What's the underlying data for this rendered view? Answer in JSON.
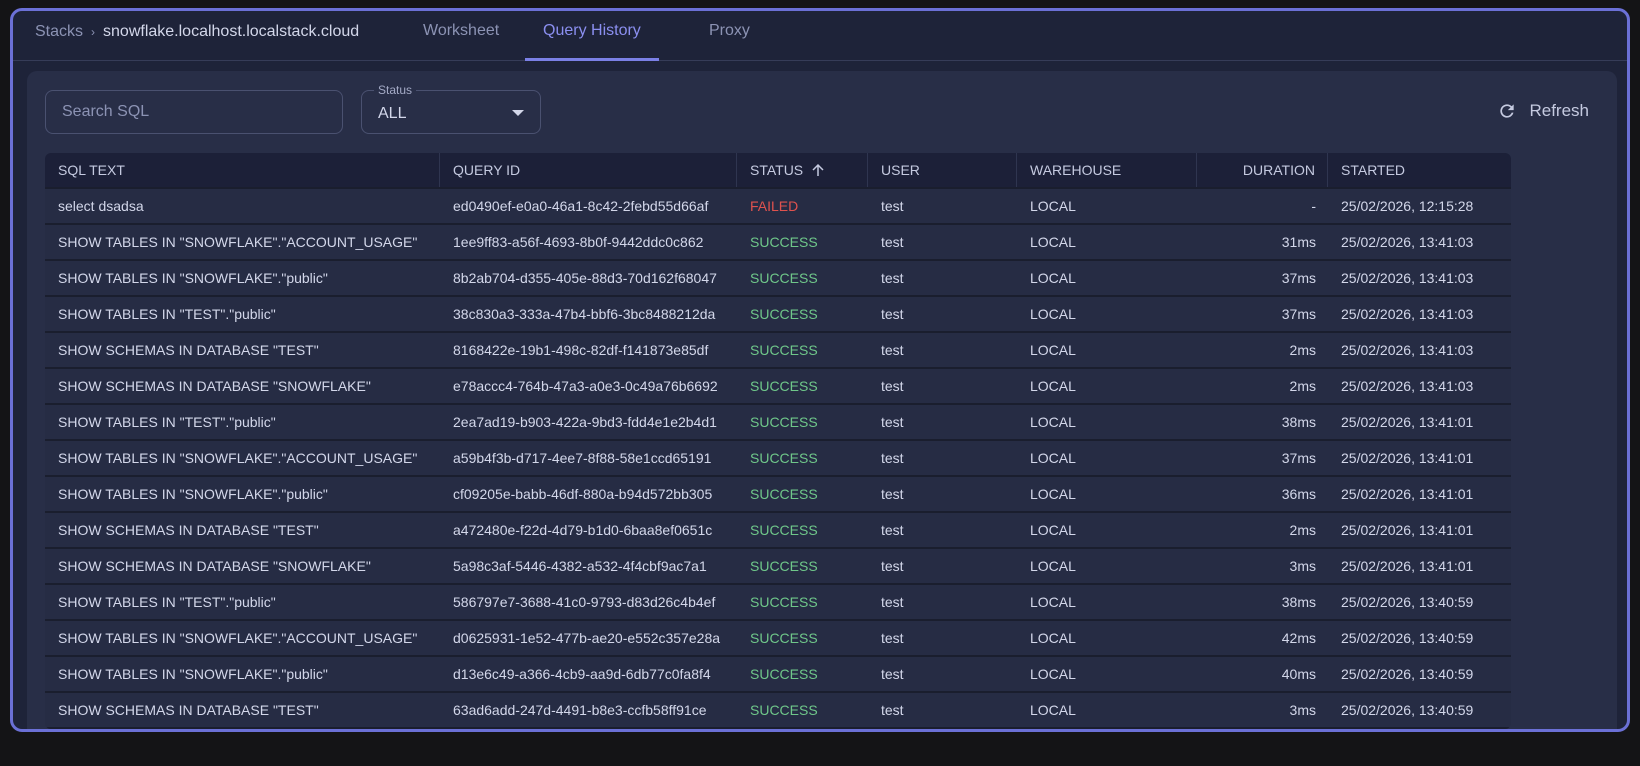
{
  "breadcrumb": {
    "root": "Stacks",
    "separator": "›",
    "host": "snowflake.localhost.localstack.cloud"
  },
  "tabs": [
    {
      "label": "Worksheet"
    },
    {
      "label": "Query History",
      "active": true
    },
    {
      "label": "Proxy"
    }
  ],
  "search": {
    "placeholder": "Search SQL",
    "value": ""
  },
  "status_filter": {
    "label": "Status",
    "value": "ALL"
  },
  "refresh": {
    "label": "Refresh",
    "icon": "refresh-icon"
  },
  "colors": {
    "accent": "#7b80e6",
    "success": "#6fc78a",
    "failed": "#e0524e"
  },
  "table": {
    "columns": [
      "SQL TEXT",
      "QUERY ID",
      "STATUS",
      "USER",
      "WAREHOUSE",
      "DURATION",
      "STARTED"
    ],
    "sort": {
      "column": "STATUS",
      "direction": "asc"
    },
    "rows": [
      [
        "select dsadsa",
        "ed0490ef-e0a0-46a1-8c42-2febd55d66af",
        "FAILED",
        "test",
        "LOCAL",
        "-",
        "25/02/2026, 12:15:28"
      ],
      [
        "SHOW TABLES IN \"SNOWFLAKE\".\"ACCOUNT_USAGE\"",
        "1ee9ff83-a56f-4693-8b0f-9442ddc0c862",
        "SUCCESS",
        "test",
        "LOCAL",
        "31ms",
        "25/02/2026, 13:41:03"
      ],
      [
        "SHOW TABLES IN \"SNOWFLAKE\".\"public\"",
        "8b2ab704-d355-405e-88d3-70d162f68047",
        "SUCCESS",
        "test",
        "LOCAL",
        "37ms",
        "25/02/2026, 13:41:03"
      ],
      [
        "SHOW TABLES IN \"TEST\".\"public\"",
        "38c830a3-333a-47b4-bbf6-3bc8488212da",
        "SUCCESS",
        "test",
        "LOCAL",
        "37ms",
        "25/02/2026, 13:41:03"
      ],
      [
        "SHOW SCHEMAS IN DATABASE \"TEST\"",
        "8168422e-19b1-498c-82df-f141873e85df",
        "SUCCESS",
        "test",
        "LOCAL",
        "2ms",
        "25/02/2026, 13:41:03"
      ],
      [
        "SHOW SCHEMAS IN DATABASE \"SNOWFLAKE\"",
        "e78accc4-764b-47a3-a0e3-0c49a76b6692",
        "SUCCESS",
        "test",
        "LOCAL",
        "2ms",
        "25/02/2026, 13:41:03"
      ],
      [
        "SHOW TABLES IN \"TEST\".\"public\"",
        "2ea7ad19-b903-422a-9bd3-fdd4e1e2b4d1",
        "SUCCESS",
        "test",
        "LOCAL",
        "38ms",
        "25/02/2026, 13:41:01"
      ],
      [
        "SHOW TABLES IN \"SNOWFLAKE\".\"ACCOUNT_USAGE\"",
        "a59b4f3b-d717-4ee7-8f88-58e1ccd65191",
        "SUCCESS",
        "test",
        "LOCAL",
        "37ms",
        "25/02/2026, 13:41:01"
      ],
      [
        "SHOW TABLES IN \"SNOWFLAKE\".\"public\"",
        "cf09205e-babb-46df-880a-b94d572bb305",
        "SUCCESS",
        "test",
        "LOCAL",
        "36ms",
        "25/02/2026, 13:41:01"
      ],
      [
        "SHOW SCHEMAS IN DATABASE \"TEST\"",
        "a472480e-f22d-4d79-b1d0-6baa8ef0651c",
        "SUCCESS",
        "test",
        "LOCAL",
        "2ms",
        "25/02/2026, 13:41:01"
      ],
      [
        "SHOW SCHEMAS IN DATABASE \"SNOWFLAKE\"",
        "5a98c3af-5446-4382-a532-4f4cbf9ac7a1",
        "SUCCESS",
        "test",
        "LOCAL",
        "3ms",
        "25/02/2026, 13:41:01"
      ],
      [
        "SHOW TABLES IN \"TEST\".\"public\"",
        "586797e7-3688-41c0-9793-d83d26c4b4ef",
        "SUCCESS",
        "test",
        "LOCAL",
        "38ms",
        "25/02/2026, 13:40:59"
      ],
      [
        "SHOW TABLES IN \"SNOWFLAKE\".\"ACCOUNT_USAGE\"",
        "d0625931-1e52-477b-ae20-e552c357e28a",
        "SUCCESS",
        "test",
        "LOCAL",
        "42ms",
        "25/02/2026, 13:40:59"
      ],
      [
        "SHOW TABLES IN \"SNOWFLAKE\".\"public\"",
        "d13e6c49-a366-4cb9-aa9d-6db77c0fa8f4",
        "SUCCESS",
        "test",
        "LOCAL",
        "40ms",
        "25/02/2026, 13:40:59"
      ],
      [
        "SHOW SCHEMAS IN DATABASE \"TEST\"",
        "63ad6add-247d-4491-b8e3-ccfb58ff91ce",
        "SUCCESS",
        "test",
        "LOCAL",
        "3ms",
        "25/02/2026, 13:40:59"
      ]
    ]
  }
}
